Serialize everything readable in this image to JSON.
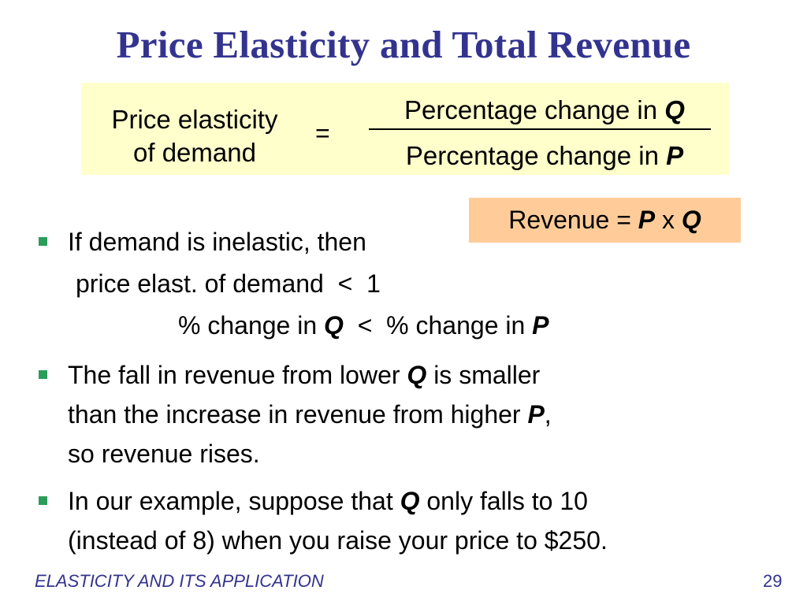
{
  "title": "Price Elasticity and Total Revenue",
  "formula": {
    "lhs_line1": "Price elasticity",
    "lhs_line2": "of demand",
    "equals": "=",
    "numerator_text": "Percentage change in ",
    "numerator_var": "Q",
    "denominator_text": "Percentage change in ",
    "denominator_var": "P"
  },
  "revenue_box": {
    "text_before": "Revenue = ",
    "var1": "P",
    "times": " x ",
    "var2": "Q"
  },
  "bullets": {
    "b1": {
      "line1": "If demand is inelastic, then",
      "line2": "price elast. of demand  <  1",
      "line3_a": "% change in ",
      "line3_var1": "Q",
      "line3_b": "  <  % change in ",
      "line3_var2": "P"
    },
    "b2": {
      "line1_a": "The fall in revenue from lower ",
      "line1_var": "Q",
      "line1_b": " is smaller",
      "line2_a": "than the increase in revenue from higher ",
      "line2_var": "P",
      "line2_b": ",",
      "line3": "so revenue rises."
    },
    "b3": {
      "line1_a": "In our example, suppose that ",
      "line1_var": "Q",
      "line1_b": " only falls to 10",
      "line2": "(instead of 8) when you raise your price to $250."
    }
  },
  "footer": {
    "left": "ELASTICITY AND ITS APPLICATION",
    "page_number": "29"
  },
  "colors": {
    "title": "#33338f",
    "formula_bg": "#ffffcc",
    "revenue_bg": "#ffcc99",
    "bullet": "#2c9c5a"
  }
}
